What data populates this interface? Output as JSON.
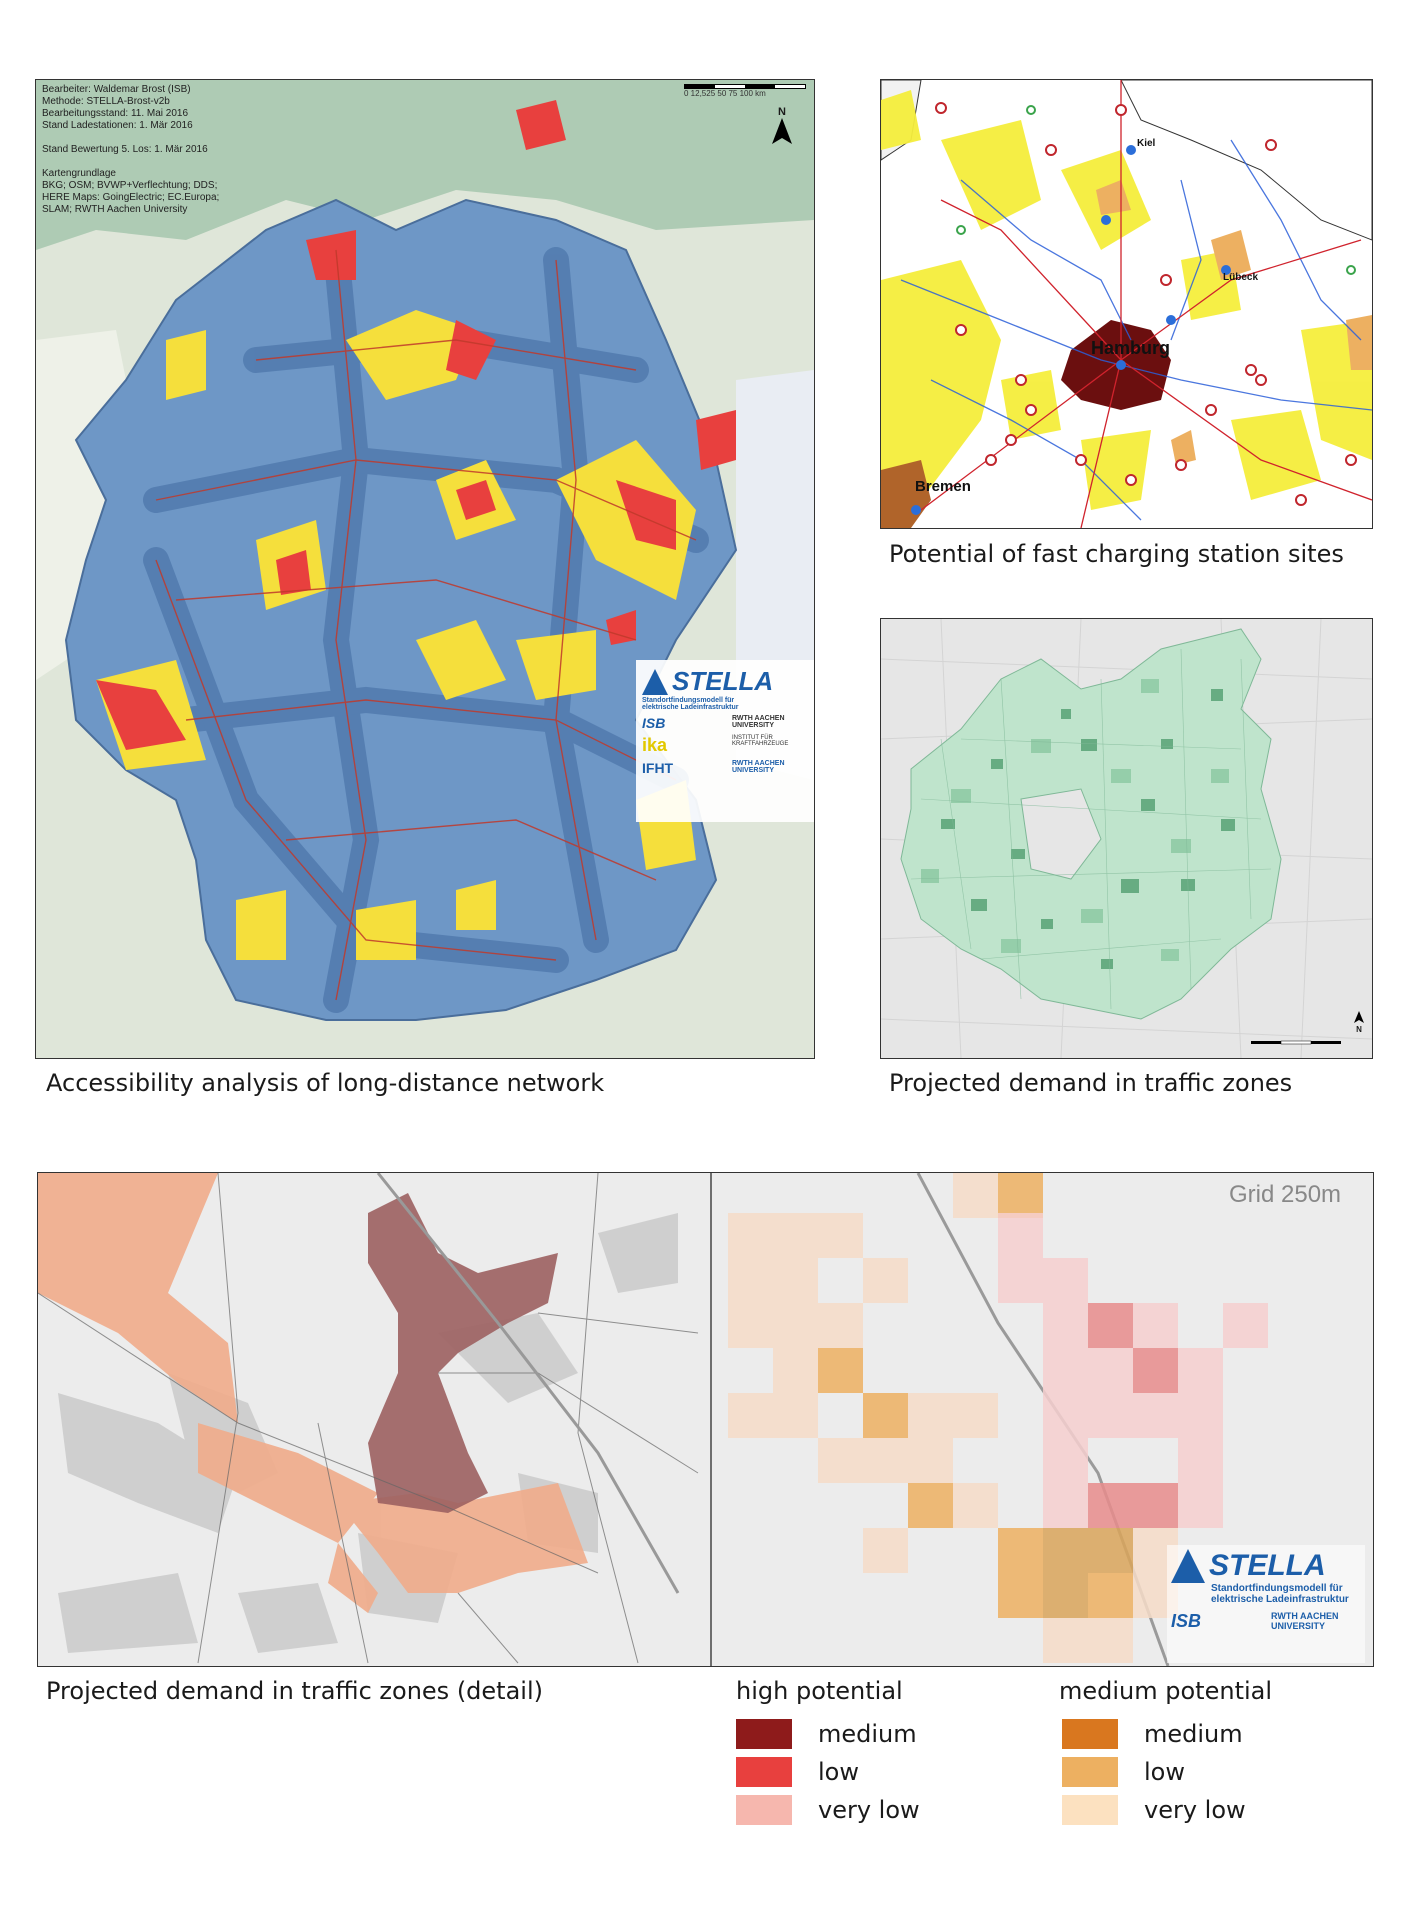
{
  "panels": {
    "germany": {
      "caption": "Accessibility analysis of long-distance network",
      "meta_lines": [
        "Bearbeiter: Waldemar Brost (ISB)",
        "Methode: STELLA-Brost-v2b",
        "Bearbeitungsstand: 11. Mai 2016",
        "Stand Ladestationen: 1. Mär 2016",
        "",
        "Stand Bewertung 5. Los: 1. Mär 2016",
        "",
        "Kartengrundlage",
        "BKG; OSM; BVWP+Verflechtung; DDS;",
        "HERE Maps: GoingElectric; EC.Europa;",
        "SLAM; RWTH Aachen University"
      ],
      "scale_text": "0 12,525 50 75 100 km",
      "north": "N",
      "logo": {
        "brand": "STELLA",
        "subtitle_1": "Standortfindungsmodell für",
        "subtitle_2": "elektrische Ladeinfrastruktur",
        "isb": "ISB",
        "rwth": "RWTH AACHEN UNIVERSITY",
        "ika": "ika",
        "ika_text": "INSTITUT FÜR KRAFTFAHRZEUGE",
        "ifht": "IFHT"
      }
    },
    "fast_charging": {
      "caption": "Potential of fast charging station sites",
      "cities": {
        "kiel": "Kiel",
        "luebeck": "Lübeck",
        "hamburg": "Hamburg",
        "bremen": "Bremen"
      }
    },
    "traffic_zones": {
      "caption": "Projected demand in traffic zones",
      "north": "N"
    },
    "detail": {
      "caption": "Projected demand in traffic zones (detail)",
      "grid_label": "Grid 250m",
      "logo": {
        "brand": "STELLA",
        "subtitle_1": "Standortfindungsmodell für",
        "subtitle_2": "elektrische Ladeinfrastruktur",
        "isb": "ISB",
        "rwth": "RWTH AACHEN UNIVERSITY"
      }
    }
  },
  "legend": {
    "groups": [
      {
        "title": "high potential",
        "items": [
          {
            "label": "medium",
            "color": "#8e1b1b"
          },
          {
            "label": "low",
            "color": "#e8403e"
          },
          {
            "label": "very low",
            "color": "#f6b7ae"
          }
        ]
      },
      {
        "title": "medium potential",
        "items": [
          {
            "label": "medium",
            "color": "#d9771f"
          },
          {
            "label": "low",
            "color": "#edb061"
          },
          {
            "label": "very low",
            "color": "#fce1c0"
          }
        ]
      }
    ]
  },
  "colors": {
    "accessibility_blue": "#6e97c6",
    "corridor_blue": "#4f79ad",
    "gap_yellow": "#f5df3c",
    "gap_red": "#e8403e",
    "road_red": "#c0392b",
    "zone_green": "#9fd3b2",
    "brand_blue": "#1c5ea9"
  }
}
